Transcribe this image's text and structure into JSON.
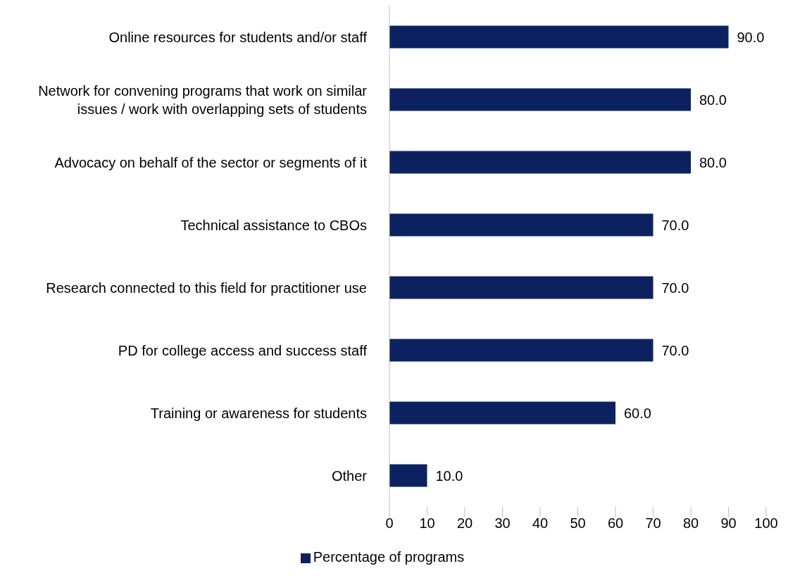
{
  "chart_data": {
    "type": "bar",
    "orientation": "horizontal",
    "categories": [
      "Online resources for students and/or staff",
      "Network for convening programs that work on similar issues / work with overlapping sets of students",
      "Advocacy on behalf of the sector or segments of it",
      "Technical assistance to CBOs",
      "Research connected to this field for practitioner use",
      "PD for college access and success staff",
      "Training or awareness for students",
      "Other"
    ],
    "series": [
      {
        "name": "Percentage of programs",
        "color": "#0c2260",
        "values": [
          90,
          80,
          80,
          70,
          70,
          70,
          60,
          10
        ],
        "value_labels": [
          "90.0",
          "80.0",
          "80.0",
          "70.0",
          "70.0",
          "70.0",
          "60.0",
          "10.0"
        ]
      }
    ],
    "xlim": [
      0,
      100
    ],
    "xticks": [
      0,
      10,
      20,
      30,
      40,
      50,
      60,
      70,
      80,
      90,
      100
    ],
    "grid": false,
    "legend": "bottom"
  }
}
